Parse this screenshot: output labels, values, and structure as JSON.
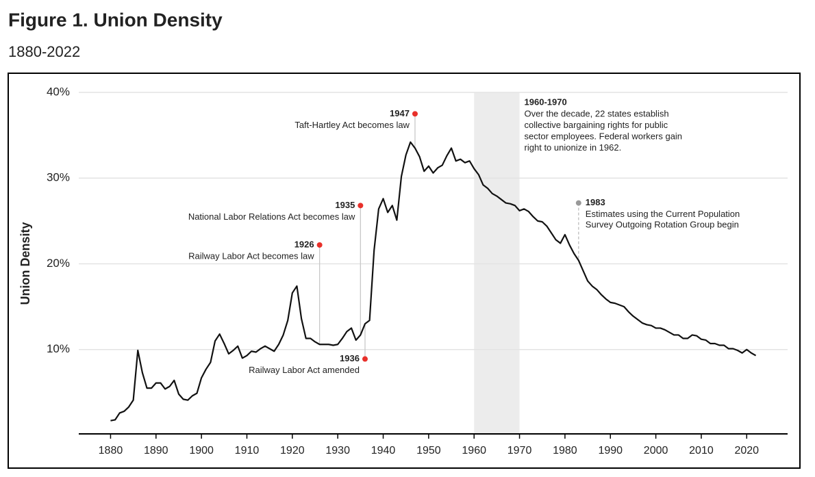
{
  "chart_data": {
    "type": "line",
    "title": "Figure 1. Union Density",
    "subtitle": "1880-2022",
    "y_label": "Union Density",
    "color": "#111111",
    "x": [
      1880,
      1881,
      1882,
      1883,
      1884,
      1885,
      1886,
      1887,
      1888,
      1889,
      1890,
      1891,
      1892,
      1893,
      1894,
      1895,
      1896,
      1897,
      1898,
      1899,
      1900,
      1901,
      1902,
      1903,
      1904,
      1905,
      1906,
      1907,
      1908,
      1909,
      1910,
      1911,
      1912,
      1913,
      1914,
      1915,
      1916,
      1917,
      1918,
      1919,
      1920,
      1921,
      1922,
      1923,
      1924,
      1925,
      1926,
      1927,
      1928,
      1929,
      1930,
      1931,
      1932,
      1933,
      1934,
      1935,
      1936,
      1937,
      1938,
      1939,
      1940,
      1941,
      1942,
      1943,
      1944,
      1945,
      1946,
      1947,
      1948,
      1949,
      1950,
      1951,
      1952,
      1953,
      1954,
      1955,
      1956,
      1957,
      1958,
      1959,
      1960,
      1961,
      1962,
      1963,
      1964,
      1965,
      1966,
      1967,
      1968,
      1969,
      1970,
      1971,
      1972,
      1973,
      1974,
      1975,
      1976,
      1977,
      1978,
      1979,
      1980,
      1981,
      1982,
      1983,
      1984,
      1985,
      1986,
      1987,
      1988,
      1989,
      1990,
      1991,
      1992,
      1993,
      1994,
      1995,
      1996,
      1997,
      1998,
      1999,
      2000,
      2001,
      2002,
      2003,
      2004,
      2005,
      2006,
      2007,
      2008,
      2009,
      2010,
      2011,
      2012,
      2013,
      2014,
      2015,
      2016,
      2017,
      2018,
      2019,
      2020,
      2021,
      2022
    ],
    "values": [
      1.7,
      1.8,
      2.6,
      2.8,
      3.3,
      4.1,
      9.9,
      7.3,
      5.5,
      5.5,
      6.1,
      6.1,
      5.4,
      5.7,
      6.4,
      4.8,
      4.2,
      4.1,
      4.6,
      4.9,
      6.7,
      7.7,
      8.5,
      11.0,
      11.8,
      10.7,
      9.5,
      9.9,
      10.4,
      9.0,
      9.3,
      9.8,
      9.7,
      10.1,
      10.4,
      10.1,
      9.8,
      10.6,
      11.7,
      13.4,
      16.6,
      17.4,
      13.6,
      11.3,
      11.3,
      10.9,
      10.6,
      10.6,
      10.6,
      10.5,
      10.6,
      11.3,
      12.1,
      12.5,
      11.1,
      11.7,
      13.0,
      13.4,
      21.6,
      26.4,
      27.6,
      26.0,
      26.8,
      25.1,
      30.2,
      32.7,
      34.2,
      33.5,
      32.5,
      30.8,
      31.4,
      30.6,
      31.2,
      31.5,
      32.6,
      33.5,
      32.0,
      32.2,
      31.8,
      32.0,
      31.1,
      30.4,
      29.2,
      28.8,
      28.2,
      27.9,
      27.5,
      27.1,
      27.0,
      26.8,
      26.2,
      26.4,
      26.1,
      25.5,
      25.0,
      24.9,
      24.4,
      23.6,
      22.8,
      22.4,
      23.4,
      22.2,
      21.2,
      20.4,
      19.2,
      18.0,
      17.4,
      17.0,
      16.4,
      15.9,
      15.5,
      15.4,
      15.2,
      15.0,
      14.4,
      13.9,
      13.5,
      13.1,
      12.9,
      12.8,
      12.5,
      12.5,
      12.3,
      12.0,
      11.7,
      11.7,
      11.3,
      11.3,
      11.7,
      11.6,
      11.2,
      11.1,
      10.7,
      10.7,
      10.5,
      10.5,
      10.1,
      10.1,
      9.9,
      9.6,
      10.0,
      9.6,
      9.3
    ],
    "xlim": [
      1873,
      2029
    ],
    "ylim": [
      0,
      40
    ],
    "xticks": [
      1880,
      1890,
      1900,
      1910,
      1920,
      1930,
      1940,
      1950,
      1960,
      1970,
      1980,
      1990,
      2000,
      2010,
      2020
    ],
    "yticks": [
      {
        "value": 10,
        "label": "10%"
      },
      {
        "value": 20,
        "label": "20%"
      },
      {
        "value": 30,
        "label": "30%"
      },
      {
        "value": 40,
        "label": "40%"
      }
    ],
    "grid": true,
    "shade": {
      "range": [
        1960,
        1970
      ],
      "label": "1960-1970",
      "lines": [
        "Over the decade, 22 states establish",
        "collective bargaining rights for public",
        "sector employees. Federal workers gain",
        "right to unionize in 1962."
      ]
    },
    "annotations": [
      {
        "x": 1947,
        "y": 37.5,
        "lines": [
          "Taft-Hartley Act becomes law"
        ],
        "color": "#e8302a"
      },
      {
        "x": 1935,
        "y": 26.8,
        "lines": [
          "National Labor Relations Act becomes law"
        ],
        "color": "#e8302a"
      },
      {
        "x": 1926,
        "y": 22.2,
        "lines": [
          "Railway Labor Act becomes law"
        ],
        "color": "#e8302a"
      },
      {
        "x": 1936,
        "y": 8.9,
        "lines": [
          "Railway Labor Act amended"
        ],
        "color": "#e8302a"
      },
      {
        "x": 1983,
        "y": 27.1,
        "lines": [
          "Estimates using the Current Population",
          "Survey Outgoing Rotation Group begin"
        ],
        "color": "#999999"
      }
    ]
  }
}
